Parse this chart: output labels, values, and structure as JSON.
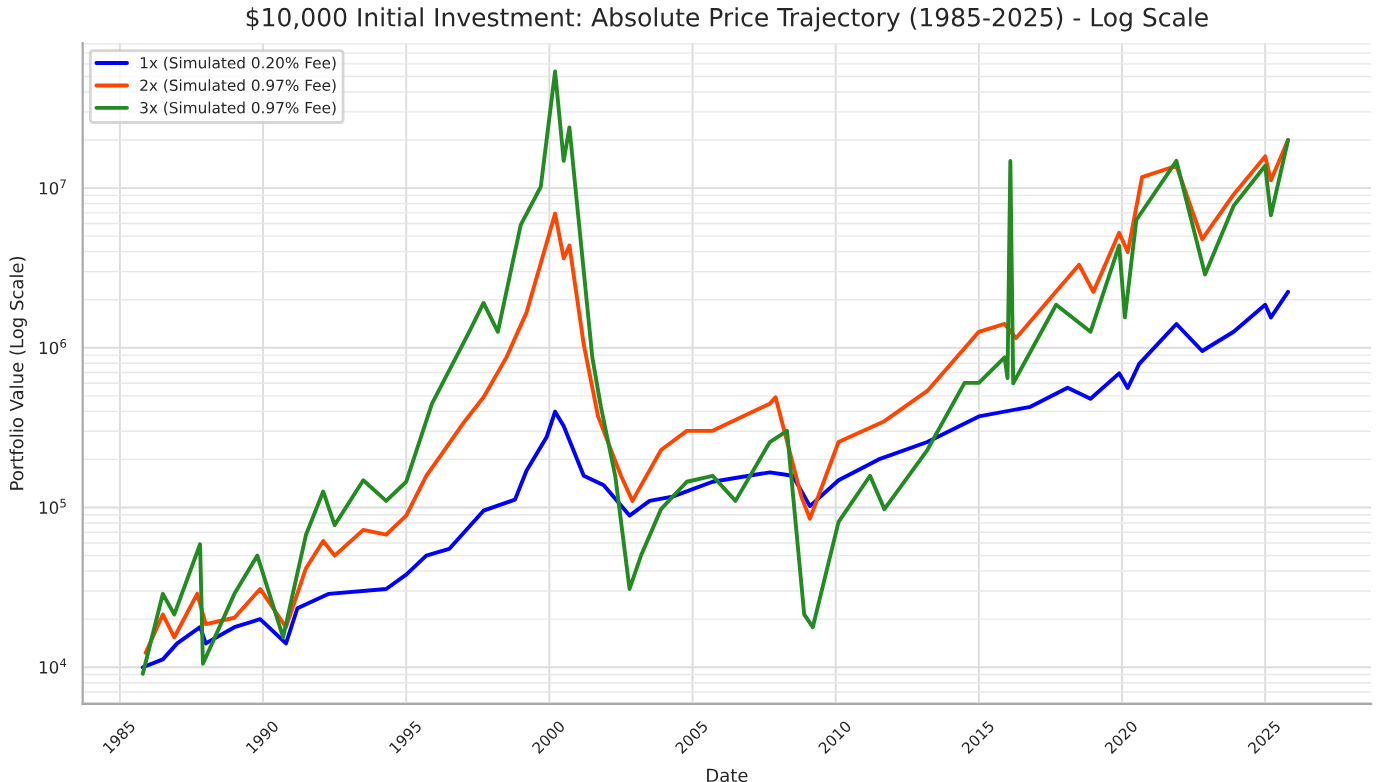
{
  "chart_data": {
    "type": "line",
    "title": "$10,000 Initial Investment: Absolute Price Trajectory (1985-2025) - Log Scale",
    "xlabel": "Date",
    "ylabel": "Portfolio Value (Log Scale)",
    "log": "y",
    "grid": true,
    "legend": "top left",
    "line_style": "solid",
    "xlim": [
      1983.7,
      2028.7
    ],
    "xticks": [
      1985,
      1990,
      1995,
      2000,
      2005,
      2010,
      2015,
      2020,
      2025
    ],
    "ylim": [
      5900,
      81000000
    ],
    "yticks": [
      {
        "value": 10000,
        "label": "10$^{4}$"
      },
      {
        "value": 100000,
        "label": "10$^{5}$"
      },
      {
        "value": 1000000,
        "label": "10$^{6}$"
      },
      {
        "value": 10000000,
        "label": "10$^{7}$"
      }
    ],
    "series": [
      {
        "name": "1x (Simulated 0.20% Fee)",
        "color": "#0000ff",
        "x": [
          1985.8,
          1986.5,
          1987.0,
          1987.8,
          1988.0,
          1989.0,
          1989.9,
          1990.8,
          1991.2,
          1992.3,
          1994.3,
          1995.0,
          1995.7,
          1996.5,
          1997.7,
          1998.8,
          1999.2,
          1999.9,
          2000.2,
          2000.5,
          2001.2,
          2001.9,
          2002.8,
          2003.5,
          2004.3,
          2005.7,
          2007.7,
          2008.5,
          2009.1,
          2010.1,
          2011.5,
          2013.2,
          2015.0,
          2016.8,
          2018.1,
          2018.9,
          2019.9,
          2020.2,
          2020.6,
          2021.9,
          2022.8,
          2023.9,
          2025.0,
          2025.2,
          2025.8
        ],
        "values": [
          10000,
          11200,
          14100,
          17800,
          14100,
          17800,
          20000,
          14100,
          23400,
          28800,
          30900,
          38000,
          50000,
          55000,
          95500,
          112000,
          170000,
          275000,
          398000,
          324000,
          158000,
          138000,
          89000,
          110000,
          117000,
          145000,
          166000,
          158000,
          102000,
          148000,
          200000,
          257000,
          372000,
          427000,
          562000,
          480000,
          692000,
          560000,
          794000,
          1410000,
          955000,
          1260000,
          1860000,
          1550000,
          2240000
        ]
      },
      {
        "name": "2x (Simulated 0.97% Fee)",
        "color": "#ff4500",
        "x": [
          1985.9,
          1986.5,
          1986.9,
          1987.7,
          1988.0,
          1989.0,
          1989.9,
          1990.8,
          1991.5,
          1992.1,
          1992.5,
          1993.5,
          1994.3,
          1995.0,
          1995.7,
          1996.3,
          1997.0,
          1997.7,
          1998.5,
          1999.2,
          2000.2,
          2000.5,
          2000.7,
          2001.2,
          2001.7,
          2002.5,
          2002.9,
          2003.9,
          2004.8,
          2005.7,
          2007.7,
          2007.9,
          2008.8,
          2009.1,
          2010.1,
          2011.7,
          2013.2,
          2015.0,
          2015.9,
          2016.3,
          2018.5,
          2019.0,
          2019.9,
          2020.2,
          2020.7,
          2021.9,
          2022.8,
          2023.9,
          2025.0,
          2025.2,
          2025.8
        ],
        "values": [
          12300,
          21400,
          15400,
          28800,
          18600,
          20400,
          30900,
          17800,
          41700,
          61700,
          50000,
          72400,
          67600,
          89000,
          158000,
          224000,
          339000,
          490000,
          871000,
          1660000,
          6920000,
          3630000,
          4370000,
          1050000,
          372000,
          158000,
          110000,
          229000,
          302000,
          302000,
          447000,
          490000,
          117000,
          85100,
          257000,
          347000,
          537000,
          1260000,
          1410000,
          1150000,
          3310000,
          2240000,
          5250000,
          3980000,
          11700000,
          13800000,
          4790000,
          9120000,
          15800000,
          11200000,
          20000000
        ]
      },
      {
        "name": "3x (Simulated 0.97% Fee)",
        "color": "#228b22",
        "x": [
          1985.8,
          1986.5,
          1986.9,
          1987.8,
          1987.9,
          1989.0,
          1989.8,
          1990.7,
          1991.5,
          1992.1,
          1992.5,
          1993.5,
          1994.3,
          1995.0,
          1995.9,
          1997.2,
          1997.7,
          1998.2,
          1999.0,
          1999.7,
          2000.2,
          2000.5,
          2000.7,
          2001.0,
          2001.5,
          2001.8,
          2002.3,
          2002.8,
          2003.2,
          2003.9,
          2004.8,
          2005.7,
          2006.5,
          2007.7,
          2008.3,
          2008.9,
          2009.2,
          2010.1,
          2011.2,
          2011.7,
          2013.2,
          2014.5,
          2015.0,
          2015.9,
          2016.0,
          2016.1,
          2016.2,
          2017.7,
          2018.9,
          2019.9,
          2020.1,
          2020.5,
          2021.9,
          2022.9,
          2023.9,
          2025.0,
          2025.2,
          2025.8
        ],
        "values": [
          9100,
          28800,
          21400,
          58900,
          10500,
          28800,
          50000,
          15400,
          67600,
          126000,
          77600,
          148000,
          110000,
          145000,
          447000,
          1260000,
          1910000,
          1260000,
          5890000,
          10200000,
          53700000,
          14800000,
          24000000,
          6920000,
          871000,
          427000,
          158000,
          30900,
          50000,
          97700,
          145000,
          158000,
          110000,
          257000,
          302000,
          21400,
          17800,
          81300,
          158000,
          97700,
          229000,
          603000,
          603000,
          871000,
          646000,
          14800000,
          600000,
          1860000,
          1260000,
          4370000,
          1550000,
          6310000,
          14800000,
          2880000,
          7760000,
          13800000,
          6760000,
          20000000
        ]
      }
    ]
  }
}
